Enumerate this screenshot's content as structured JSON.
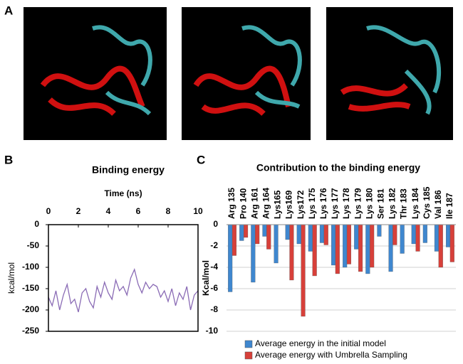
{
  "panel_labels": [
    "A",
    "B",
    "C"
  ],
  "chart_data": [
    {
      "type": "line",
      "title": "Binding energy",
      "xlabel": "Time (ns)",
      "ylabel": "kcal/mol",
      "color": "#8a6bb5",
      "x": [
        0,
        0.25,
        0.5,
        0.75,
        1,
        1.25,
        1.5,
        1.75,
        2,
        2.25,
        2.5,
        2.75,
        3,
        3.25,
        3.5,
        3.75,
        4,
        4.25,
        4.5,
        4.75,
        5,
        5.25,
        5.5,
        5.75,
        6,
        6.25,
        6.5,
        6.75,
        7,
        7.25,
        7.5,
        7.75,
        8,
        8.25,
        8.5,
        8.75,
        9,
        9.25,
        9.5,
        9.75,
        10
      ],
      "values": [
        -170,
        -190,
        -155,
        -200,
        -165,
        -140,
        -185,
        -175,
        -205,
        -160,
        -150,
        -180,
        -195,
        -145,
        -170,
        -135,
        -160,
        -175,
        -130,
        -155,
        -145,
        -165,
        -125,
        -105,
        -140,
        -160,
        -135,
        -150,
        -140,
        -145,
        -170,
        -155,
        -180,
        -150,
        -190,
        -160,
        -175,
        -145,
        -200,
        -165,
        -155
      ],
      "xlim": [
        0,
        10
      ],
      "xticks": [
        0,
        2,
        4,
        6,
        8,
        10
      ],
      "ylim": [
        -250,
        0
      ],
      "yticks": [
        0,
        -50,
        -100,
        -150,
        -200,
        -250
      ],
      "grid": false
    },
    {
      "type": "bar",
      "title": "Contribution to the binding energy",
      "ylabel": "Kcal/mol",
      "categories": [
        "Arg 135",
        "Pro 140",
        "Arg 161",
        "Arg 164",
        "Lys165",
        "Lys169",
        "Lys172",
        "Lys 175",
        "Lys 176",
        "Lys 177",
        "Lys 178",
        "Lys 179",
        "Lys 180",
        "Ser 181",
        "Lys 182",
        "Thr 183",
        "Lys 184",
        "Cys 185",
        "Val 186",
        "Ile 187"
      ],
      "series": [
        {
          "name": "Average energy in the initial model",
          "color": "#3f87cf",
          "values": [
            -6.3,
            -1.5,
            -5.4,
            -1.1,
            -3.6,
            -1.4,
            -1.8,
            -2.5,
            -1.7,
            -3.8,
            -4.0,
            -2.3,
            -4.6,
            -1.1,
            -4.4,
            -2.7,
            -1.8,
            -1.7,
            -2.5,
            -2.1
          ]
        },
        {
          "name": "Average energy with Umbrella Sampling",
          "color": "#d7403a",
          "values": [
            -2.9,
            -1.2,
            -1.8,
            -2.3,
            null,
            -5.2,
            -8.6,
            -4.8,
            -1.9,
            -4.6,
            -3.7,
            -4.4,
            -4.0,
            null,
            -1.9,
            null,
            -2.5,
            null,
            -4.0,
            -3.5
          ]
        }
      ],
      "ylim": [
        -10,
        0
      ],
      "yticks": [
        0,
        -2,
        -4,
        -6,
        -8,
        -10
      ],
      "grid": true,
      "legend": "bottom"
    }
  ]
}
